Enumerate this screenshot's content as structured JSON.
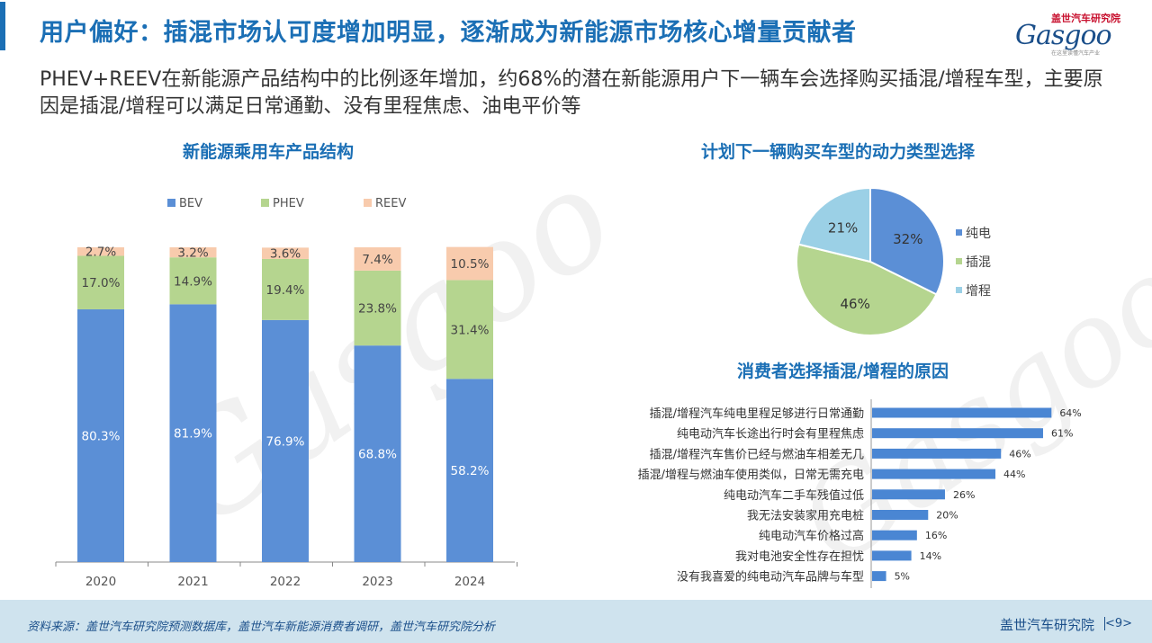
{
  "header": {
    "title": "用户偏好：插混市场认可度增加明显，逐渐成为新能源市场核心增量贡献者",
    "logo_cn": "盖世汽车研究院",
    "logo_en": "Gasgoo",
    "logo_sub": "在这里读懂汽车产业"
  },
  "subtitle": "PHEV+REEV在新能源产品结构中的比例逐年增加，约68%的潜在新能源用户下一辆车会选择购买插混/增程车型，主要原因是插混/增程可以满足日常通勤、没有里程焦虑、油电平价等",
  "watermark": {
    "logo_text": "Gasgoo",
    "cn_text": "盖世汽车研究院"
  },
  "chart_data": [
    {
      "type": "bar",
      "stacked": true,
      "title": "新能源乘用车产品结构",
      "categories": [
        "2020",
        "2021",
        "2022",
        "2023",
        "2024"
      ],
      "series": [
        {
          "name": "BEV",
          "values": [
            80.3,
            81.9,
            76.9,
            68.8,
            58.2
          ],
          "labels": [
            "80.3%",
            "81.9%",
            "76.9%",
            "68.8%",
            "58.2%"
          ],
          "color": "#5b8fd6"
        },
        {
          "name": "PHEV",
          "values": [
            17.0,
            14.9,
            19.4,
            23.8,
            31.4
          ],
          "labels": [
            "17.0%",
            "14.9%",
            "19.4%",
            "23.8%",
            "31.4%"
          ],
          "color": "#b5d58f"
        },
        {
          "name": "REEV",
          "values": [
            2.7,
            3.2,
            3.6,
            7.4,
            10.5
          ],
          "labels": [
            "2.7%",
            "3.2%",
            "3.6%",
            "7.4%",
            "10.5%"
          ],
          "color": "#f8cbad"
        }
      ],
      "ylim": [
        0,
        100
      ],
      "legend": "top"
    },
    {
      "type": "pie",
      "title": "计划下一辆购买车型的动力类型选择",
      "slices": [
        {
          "name": "纯电",
          "value": 32,
          "label": "32%",
          "color": "#5b8fd6"
        },
        {
          "name": "插混",
          "value": 46,
          "label": "46%",
          "color": "#b5d58f"
        },
        {
          "name": "增程",
          "value": 21,
          "label": "21%",
          "color": "#9bd0e6"
        }
      ],
      "legend": "right"
    },
    {
      "type": "bar",
      "orientation": "horizontal",
      "title": "消费者选择插混/增程的原因",
      "categories": [
        "插混/增程汽车纯电里程足够进行日常通勤",
        "纯电动汽车长途出行时会有里程焦虑",
        "插混/增程汽车售价已经与燃油车相差无几",
        "插混/增程与燃油车使用类似，日常无需充电",
        "纯电动汽车二手车残值过低",
        "我无法安装家用充电桩",
        "纯电动汽车价格过高",
        "我对电池安全性存在担忧",
        "没有我喜爱的纯电动汽车品牌与车型"
      ],
      "values": [
        64,
        61,
        46,
        44,
        26,
        20,
        16,
        14,
        5
      ],
      "labels": [
        "64%",
        "61%",
        "46%",
        "44%",
        "26%",
        "20%",
        "16%",
        "14%",
        "5%"
      ],
      "color": "#4a86d3"
    }
  ],
  "footer": {
    "source": "资料来源：盖世汽车研究院预测数据库，盖世汽车新能源消费者调研，盖世汽车研究院分析",
    "org": "盖世汽车研究院",
    "page": "<9>"
  },
  "colors": {
    "accent": "#1b6fb5",
    "footer_bg": "#cfe3ee"
  }
}
